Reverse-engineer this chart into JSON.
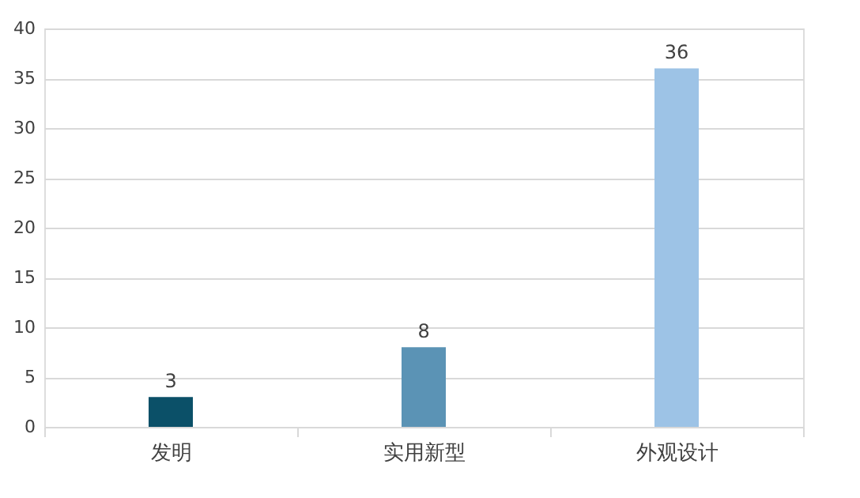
{
  "chart_data": {
    "type": "bar",
    "categories": [
      "发明",
      "实用新型",
      "外观设计"
    ],
    "values": [
      3,
      8,
      36
    ],
    "colors": [
      "#0b5068",
      "#5b93b5",
      "#9dc3e6"
    ],
    "ylim": [
      0,
      40
    ],
    "yticks": [
      0,
      5,
      10,
      15,
      20,
      25,
      30,
      35,
      40
    ],
    "grid": "y",
    "data_labels": true
  }
}
